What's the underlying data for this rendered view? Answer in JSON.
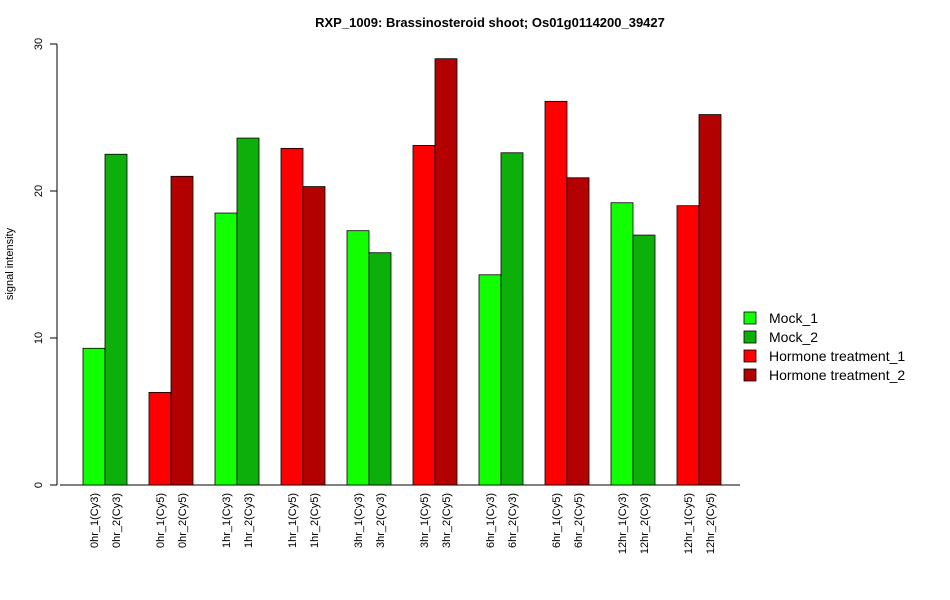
{
  "chart_data": {
    "type": "bar",
    "title": "RXP_1009: Brassinosteroid shoot; Os01g0114200_39427",
    "ylabel": "signal intensity",
    "xlabel": "",
    "ylim": [
      0,
      30
    ],
    "yticks": [
      0,
      10,
      20,
      30
    ],
    "grid": false,
    "legend_position": "right",
    "legend": [
      {
        "name": "Mock_1",
        "color": "#11ff00"
      },
      {
        "name": "Mock_2",
        "color": "#0db00b"
      },
      {
        "name": "Hormone treatment_1",
        "color": "#ff0000"
      },
      {
        "name": "Hormone treatment_2",
        "color": "#b30000"
      }
    ],
    "bars": [
      {
        "label": "0hr_1(Cy3)",
        "value": 9.3,
        "color": "#11ff00"
      },
      {
        "label": "0hr_2(Cy3)",
        "value": 22.5,
        "color": "#0db00b"
      },
      {
        "label": "0hr_1(Cy5)",
        "value": 6.3,
        "color": "#ff0000"
      },
      {
        "label": "0hr_2(Cy5)",
        "value": 21.0,
        "color": "#b30000"
      },
      {
        "label": "1hr_1(Cy3)",
        "value": 18.5,
        "color": "#11ff00"
      },
      {
        "label": "1hr_2(Cy3)",
        "value": 23.6,
        "color": "#0db00b"
      },
      {
        "label": "1hr_1(Cy5)",
        "value": 22.9,
        "color": "#ff0000"
      },
      {
        "label": "1hr_2(Cy5)",
        "value": 20.3,
        "color": "#b30000"
      },
      {
        "label": "3hr_1(Cy3)",
        "value": 17.3,
        "color": "#11ff00"
      },
      {
        "label": "3hr_2(Cy3)",
        "value": 15.8,
        "color": "#0db00b"
      },
      {
        "label": "3hr_1(Cy5)",
        "value": 23.1,
        "color": "#ff0000"
      },
      {
        "label": "3hr_2(Cy5)",
        "value": 29.0,
        "color": "#b30000"
      },
      {
        "label": "6hr_1(Cy3)",
        "value": 14.3,
        "color": "#11ff00"
      },
      {
        "label": "6hr_2(Cy3)",
        "value": 22.6,
        "color": "#0db00b"
      },
      {
        "label": "6hr_1(Cy5)",
        "value": 26.1,
        "color": "#ff0000"
      },
      {
        "label": "6hr_2(Cy5)",
        "value": 20.9,
        "color": "#b30000"
      },
      {
        "label": "12hr_1(Cy3)",
        "value": 19.2,
        "color": "#11ff00"
      },
      {
        "label": "12hr_2(Cy3)",
        "value": 17.0,
        "color": "#0db00b"
      },
      {
        "label": "12hr_1(Cy5)",
        "value": 19.0,
        "color": "#ff0000"
      },
      {
        "label": "12hr_2(Cy5)",
        "value": 25.2,
        "color": "#b30000"
      }
    ]
  }
}
